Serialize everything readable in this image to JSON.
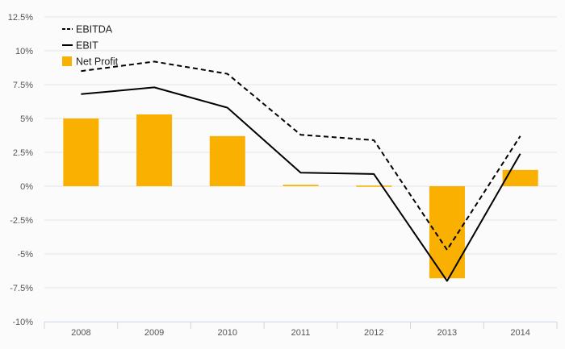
{
  "chart_data": {
    "type": "bar+line",
    "categories": [
      "2008",
      "2009",
      "2010",
      "2011",
      "2012",
      "2013",
      "2014"
    ],
    "series": [
      {
        "name": "EBITDA",
        "kind": "line",
        "style": "dashed",
        "color": "#000000",
        "values": [
          8.5,
          9.2,
          8.3,
          3.8,
          3.4,
          -4.7,
          3.7
        ]
      },
      {
        "name": "EBIT",
        "kind": "line",
        "style": "solid",
        "color": "#000000",
        "values": [
          6.8,
          7.3,
          5.8,
          1.0,
          0.9,
          -7.0,
          2.4
        ]
      },
      {
        "name": "Net Profit",
        "kind": "bar",
        "color": "#f9b000",
        "values": [
          5.0,
          5.3,
          3.7,
          0.1,
          -0.05,
          -6.8,
          1.2
        ]
      }
    ],
    "y_ticks": [
      "12.5%",
      "10%",
      "7.5%",
      "5%",
      "2.5%",
      "0%",
      "-2.5%",
      "-5%",
      "-7.5%",
      "-10%"
    ],
    "y_tick_values": [
      12.5,
      10,
      7.5,
      5,
      2.5,
      0,
      -2.5,
      -5,
      -7.5,
      -10
    ],
    "ylim": [
      -10,
      12.5
    ],
    "grid": true,
    "legend_position": "top-left",
    "colors": {
      "bar": "#f9b000",
      "grid": "#e6e6e6",
      "axis": "#ccd6eb",
      "text": "#555555"
    }
  }
}
